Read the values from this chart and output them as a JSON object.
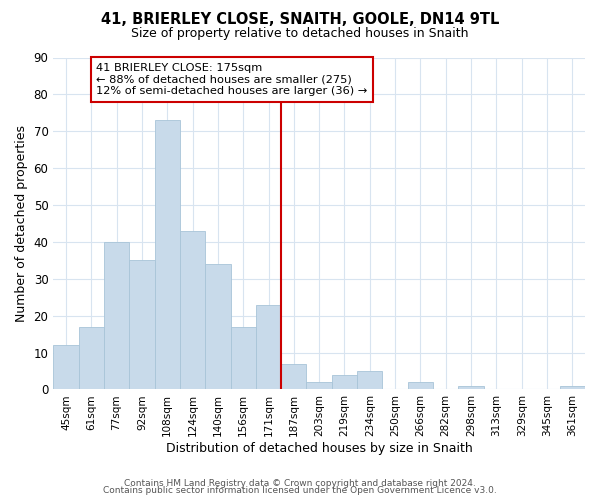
{
  "title": "41, BRIERLEY CLOSE, SNAITH, GOOLE, DN14 9TL",
  "subtitle": "Size of property relative to detached houses in Snaith",
  "xlabel": "Distribution of detached houses by size in Snaith",
  "ylabel": "Number of detached properties",
  "bar_labels": [
    "45sqm",
    "61sqm",
    "77sqm",
    "92sqm",
    "108sqm",
    "124sqm",
    "140sqm",
    "156sqm",
    "171sqm",
    "187sqm",
    "203sqm",
    "219sqm",
    "234sqm",
    "250sqm",
    "266sqm",
    "282sqm",
    "298sqm",
    "313sqm",
    "329sqm",
    "345sqm",
    "361sqm"
  ],
  "bar_values": [
    12,
    17,
    40,
    35,
    73,
    43,
    34,
    17,
    23,
    7,
    2,
    4,
    5,
    0,
    2,
    0,
    1,
    0,
    0,
    0,
    1
  ],
  "bar_color": "#c8daea",
  "bar_edge_color": "#a8c4d8",
  "vline_color": "#cc0000",
  "annotation_title": "41 BRIERLEY CLOSE: 175sqm",
  "annotation_line1": "← 88% of detached houses are smaller (275)",
  "annotation_line2": "12% of semi-detached houses are larger (36) →",
  "annotation_box_edge": "#cc0000",
  "ylim": [
    0,
    90
  ],
  "yticks": [
    0,
    10,
    20,
    30,
    40,
    50,
    60,
    70,
    80,
    90
  ],
  "footer1": "Contains HM Land Registry data © Crown copyright and database right 2024.",
  "footer2": "Contains public sector information licensed under the Open Government Licence v3.0.",
  "bg_color": "#ffffff",
  "grid_color": "#d8e4f0"
}
